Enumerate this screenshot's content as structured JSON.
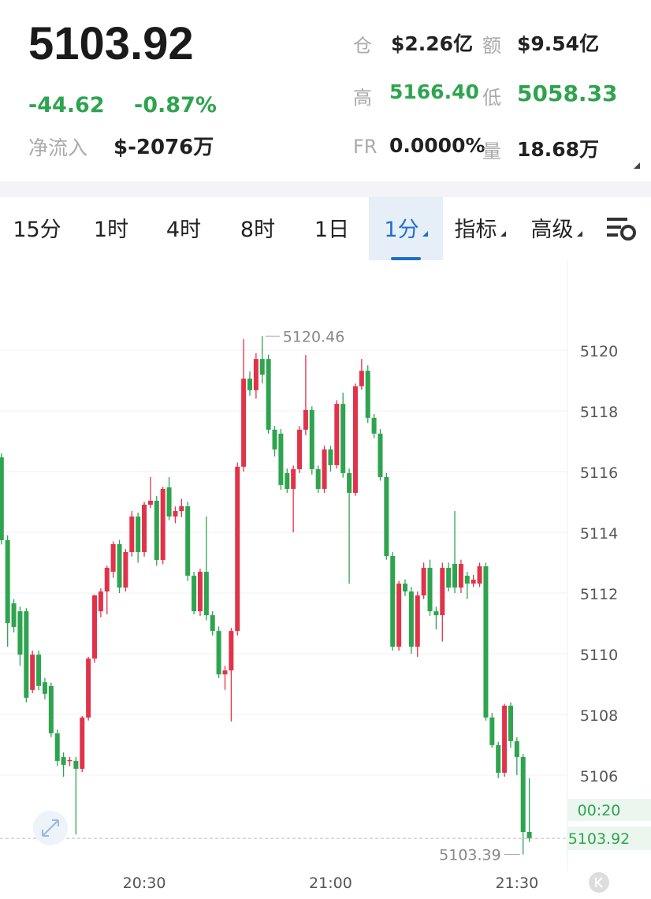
{
  "header": {
    "price": "5103.92",
    "change": "-44.62",
    "change_pct": "-0.87%",
    "net_inflow_label": "净流入",
    "net_inflow": "$-2076万",
    "stats": [
      {
        "label": "仓",
        "value": "$2.26亿"
      },
      {
        "label": "额",
        "value": "$9.54亿"
      },
      {
        "label": "高",
        "value": "5166.40"
      },
      {
        "label": "低",
        "value": "5058.33"
      },
      {
        "label": "FR",
        "value": "0.0000%"
      },
      {
        "label": "量",
        "value": "18.68万"
      }
    ]
  },
  "tabs": [
    "15分",
    "1时",
    "4时",
    "8时",
    "1日",
    "1分",
    "指标",
    "高级"
  ],
  "chart_data": {
    "type": "candlestick",
    "countdown": "00:20",
    "up_color": "#e0334a",
    "down_color": "#2ea44f",
    "categories": [
      null,
      null,
      null,
      null,
      null,
      null,
      null,
      null,
      null,
      null,
      null,
      null,
      null,
      null,
      null,
      null,
      null,
      null,
      null,
      null,
      null,
      null,
      null,
      "20:30",
      null,
      null,
      null,
      null,
      null,
      null,
      null,
      null,
      null,
      null,
      null,
      null,
      null,
      null,
      null,
      null,
      null,
      null,
      null,
      null,
      null,
      null,
      null,
      null,
      null,
      null,
      null,
      null,
      null,
      "21:00",
      null,
      null,
      null,
      null,
      null,
      null,
      null,
      null,
      null,
      null,
      null,
      null,
      null,
      null,
      null,
      null,
      null,
      null,
      null,
      null,
      null,
      null,
      null,
      null,
      null,
      null,
      null,
      null,
      null,
      "21:30",
      null,
      null
    ],
    "open": [
      5116.47,
      5113.74,
      5111.66,
      5111.4,
      5111.4,
      5108.81,
      5109.97,
      5109.06,
      5108.94,
      5107.38,
      5106.6,
      5106.47,
      5106.47,
      5106.21,
      5107.9,
      5109.84,
      5111.4,
      5112.05,
      5112.7,
      5113.61,
      5112.18,
      5113.35,
      5114.52,
      5113.35,
      5114.91,
      5115.04,
      5113.09,
      5115.48,
      5114.52,
      5114.7,
      5114.86,
      5112.57,
      5111.4,
      5112.7,
      5111.27,
      5110.75,
      5109.32,
      5109.45,
      5110.75,
      5116.16,
      5119.06,
      5118.68,
      5119.71,
      5119.71,
      5117.38,
      5117.25,
      5115.95,
      5115.43,
      5116.08,
      5117.38,
      5118.03,
      5116.08,
      5115.43,
      5116.73,
      5116.21,
      5118.23,
      5115.95,
      5115.3,
      5118.81,
      5119.32,
      5117.77,
      5117.25,
      5115.82,
      5113.22,
      5110.23,
      5112.31,
      5112.05,
      5110.23,
      5111.92,
      5112.83,
      5111.4,
      5111.27,
      5112.83,
      5112.96,
      5112.18,
      5112.57,
      5112.31,
      5112.31,
      5112.88,
      5107.9,
      5106.99,
      5106.08,
      5108.29,
      5107.12,
      5106.6,
      5104.13
    ],
    "high": [
      5116.6,
      5113.9,
      5111.8,
      5111.55,
      5111.5,
      5110.1,
      5110.1,
      5109.2,
      5109.05,
      5107.5,
      5106.75,
      5106.6,
      5106.6,
      5107.95,
      5109.9,
      5111.95,
      5112.15,
      5112.9,
      5113.7,
      5113.75,
      5113.45,
      5114.7,
      5114.65,
      5115.0,
      5115.82,
      5115.2,
      5115.5,
      5115.82,
      5114.85,
      5115.1,
      5115.0,
      5112.7,
      5112.8,
      5114.52,
      5111.4,
      5110.9,
      5109.6,
      5110.85,
      5116.3,
      5120.36,
      5119.3,
      5119.9,
      5120.46,
      5119.85,
      5117.5,
      5117.4,
      5116.1,
      5116.2,
      5117.5,
      5119.84,
      5118.15,
      5116.2,
      5116.85,
      5116.85,
      5118.35,
      5118.6,
      5116.1,
      5118.9,
      5119.71,
      5119.5,
      5117.9,
      5117.4,
      5115.95,
      5113.35,
      5112.4,
      5112.45,
      5112.2,
      5112.05,
      5113.0,
      5113.1,
      5111.55,
      5113.0,
      5113.0,
      5114.7,
      5113.1,
      5112.7,
      5112.6,
      5113.0,
      5113.0,
      5108.05,
      5107.1,
      5108.35,
      5108.4,
      5107.25,
      5106.7,
      5105.9
    ],
    "low": [
      5113.6,
      5110.23,
      5110.7,
      5109.6,
      5108.4,
      5108.7,
      5108.8,
      5108.5,
      5107.25,
      5106.3,
      5105.95,
      5106.3,
      5104.05,
      5106.1,
      5107.8,
      5109.7,
      5111.2,
      5111.3,
      5112.5,
      5112.0,
      5112.05,
      5113.2,
      5113.0,
      5113.2,
      5114.8,
      5112.9,
      5112.95,
      5114.4,
      5114.3,
      5114.5,
      5112.4,
      5111.3,
      5111.25,
      5111.1,
      5110.6,
      5109.2,
      5108.81,
      5107.77,
      5110.6,
      5116.0,
      5118.5,
      5118.4,
      5118.9,
      5117.25,
      5116.5,
      5115.4,
      5115.3,
      5114.0,
      5115.95,
      5117.2,
      5115.9,
      5115.3,
      5115.3,
      5116.0,
      5116.1,
      5115.8,
      5112.31,
      5115.2,
      5118.7,
      5117.6,
      5117.1,
      5115.7,
      5113.1,
      5110.1,
      5110.1,
      5111.9,
      5110.0,
      5109.9,
      5111.8,
      5111.25,
      5110.8,
      5110.4,
      5112.05,
      5112.0,
      5112.0,
      5111.8,
      5112.2,
      5112.2,
      5107.8,
      5106.9,
      5105.9,
      5105.95,
      5106.9,
      5106.0,
      5103.39,
      5103.8
    ],
    "close": [
      5113.74,
      5111.01,
      5110.88,
      5109.97,
      5108.55,
      5109.97,
      5108.94,
      5108.68,
      5107.38,
      5106.47,
      5106.34,
      5106.5,
      5106.21,
      5107.9,
      5109.84,
      5111.92,
      5112.05,
      5112.83,
      5113.61,
      5112.18,
      5113.35,
      5114.52,
      5113.35,
      5114.91,
      5115.04,
      5113.09,
      5115.43,
      5114.52,
      5114.7,
      5114.86,
      5112.57,
      5111.4,
      5112.7,
      5111.27,
      5110.75,
      5109.32,
      5109.45,
      5110.75,
      5116.16,
      5119.06,
      5118.68,
      5119.71,
      5119.19,
      5117.38,
      5116.73,
      5115.56,
      5115.43,
      5116.08,
      5117.38,
      5118.03,
      5116.08,
      5115.43,
      5116.73,
      5116.21,
      5118.23,
      5115.95,
      5115.3,
      5118.81,
      5119.32,
      5117.77,
      5117.25,
      5115.82,
      5113.22,
      5110.23,
      5112.31,
      5112.05,
      5110.23,
      5111.92,
      5112.83,
      5111.4,
      5111.27,
      5112.83,
      5112.18,
      5112.18,
      5112.96,
      5112.31,
      5112.44,
      5112.88,
      5107.9,
      5106.99,
      5106.08,
      5108.29,
      5107.12,
      5106.6,
      5104.13,
      5103.92
    ],
    "ylim": [
      5103,
      5123
    ],
    "yticks": [
      5106,
      5108,
      5110,
      5112,
      5114,
      5116,
      5118,
      5120
    ],
    "grid": true
  }
}
